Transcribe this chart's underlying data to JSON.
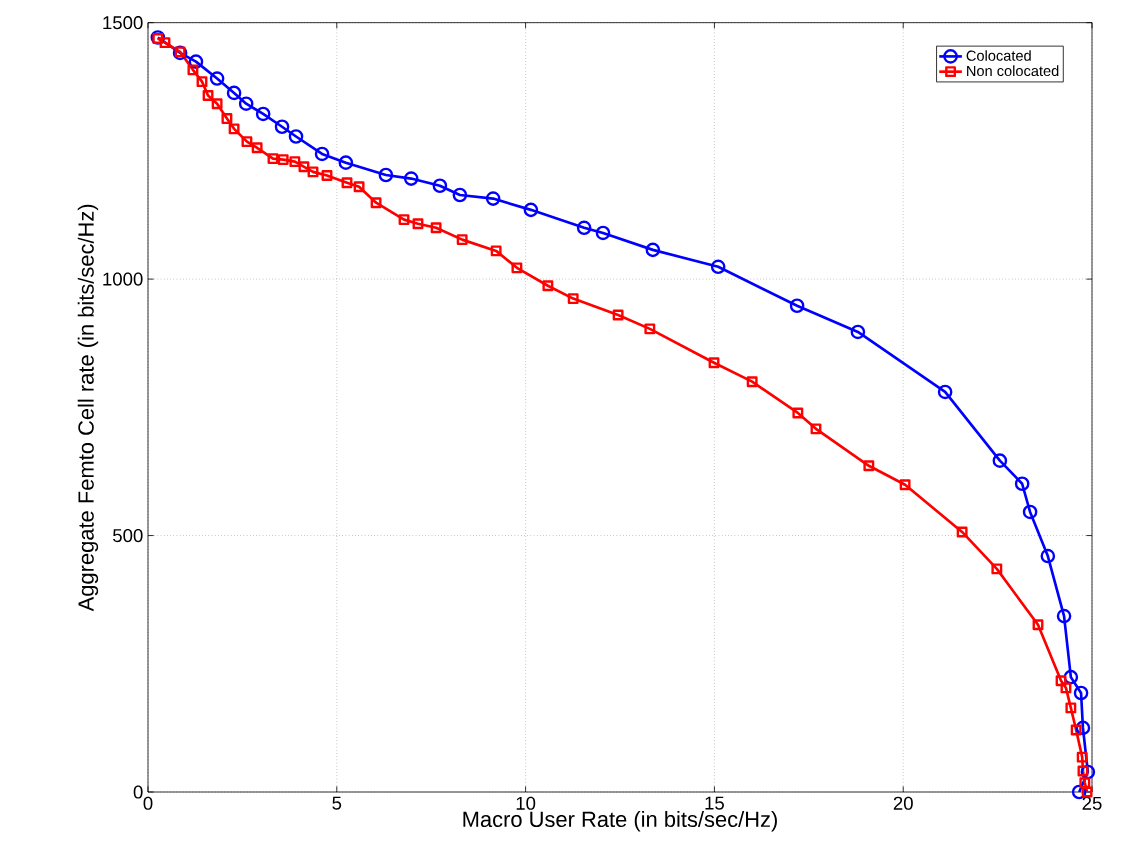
{
  "chart_data": {
    "type": "line",
    "xlabel": "Macro User Rate (in bits/sec/Hz)",
    "ylabel": "Aggregate Femto Cell rate (in bits/sec/Hz)",
    "xlim": [
      0,
      25
    ],
    "ylim": [
      0,
      1500
    ],
    "xticks": [
      0,
      5,
      10,
      15,
      20,
      25
    ],
    "yticks": [
      0,
      500,
      1000,
      1500
    ],
    "grid": true,
    "legend": "top right",
    "line_style": "solid",
    "series": [
      {
        "name": "Colocated",
        "color": "#0000ff",
        "marker": "circle",
        "x": [
          0.26,
          0.85,
          1.27,
          1.83,
          2.28,
          2.6,
          3.05,
          3.55,
          3.92,
          4.61,
          5.24,
          6.3,
          6.97,
          7.73,
          8.26,
          9.14,
          10.14,
          11.55,
          12.05,
          13.37,
          15.1,
          17.19,
          18.8,
          21.11,
          22.56,
          23.15,
          23.36,
          23.83,
          24.26,
          24.44,
          24.71,
          24.76,
          24.89,
          24.66
        ],
        "values": [
          1471,
          1441,
          1424,
          1391,
          1363,
          1342,
          1322,
          1297,
          1278,
          1244,
          1227,
          1203,
          1196,
          1182,
          1164,
          1157,
          1135,
          1100,
          1090,
          1057,
          1024,
          948,
          897,
          780,
          646,
          601,
          546,
          460,
          343,
          224,
          193,
          125,
          39,
          0
        ]
      },
      {
        "name": "Non colocated",
        "color": "#ff0000",
        "marker": "square",
        "x": [
          0.26,
          0.45,
          0.85,
          1.19,
          1.43,
          1.59,
          1.83,
          2.09,
          2.28,
          2.62,
          2.89,
          3.31,
          3.58,
          3.89,
          4.13,
          4.37,
          4.74,
          5.27,
          5.59,
          6.04,
          6.78,
          7.15,
          7.63,
          8.32,
          9.22,
          9.77,
          10.59,
          11.26,
          12.45,
          13.29,
          14.99,
          16.0,
          17.21,
          17.69,
          19.09,
          20.05,
          21.56,
          22.48,
          23.57,
          24.18,
          24.31,
          24.44,
          24.58,
          24.74,
          24.76,
          24.81,
          24.87
        ],
        "values": [
          1469,
          1461,
          1443,
          1408,
          1385,
          1358,
          1342,
          1313,
          1293,
          1268,
          1256,
          1235,
          1233,
          1229,
          1219,
          1209,
          1202,
          1188,
          1180,
          1149,
          1116,
          1108,
          1100,
          1077,
          1055,
          1022,
          987,
          962,
          930,
          903,
          837,
          800,
          739,
          708,
          636,
          599,
          507,
          435,
          326,
          217,
          203,
          164,
          121,
          68,
          41,
          18,
          0
        ]
      }
    ]
  }
}
